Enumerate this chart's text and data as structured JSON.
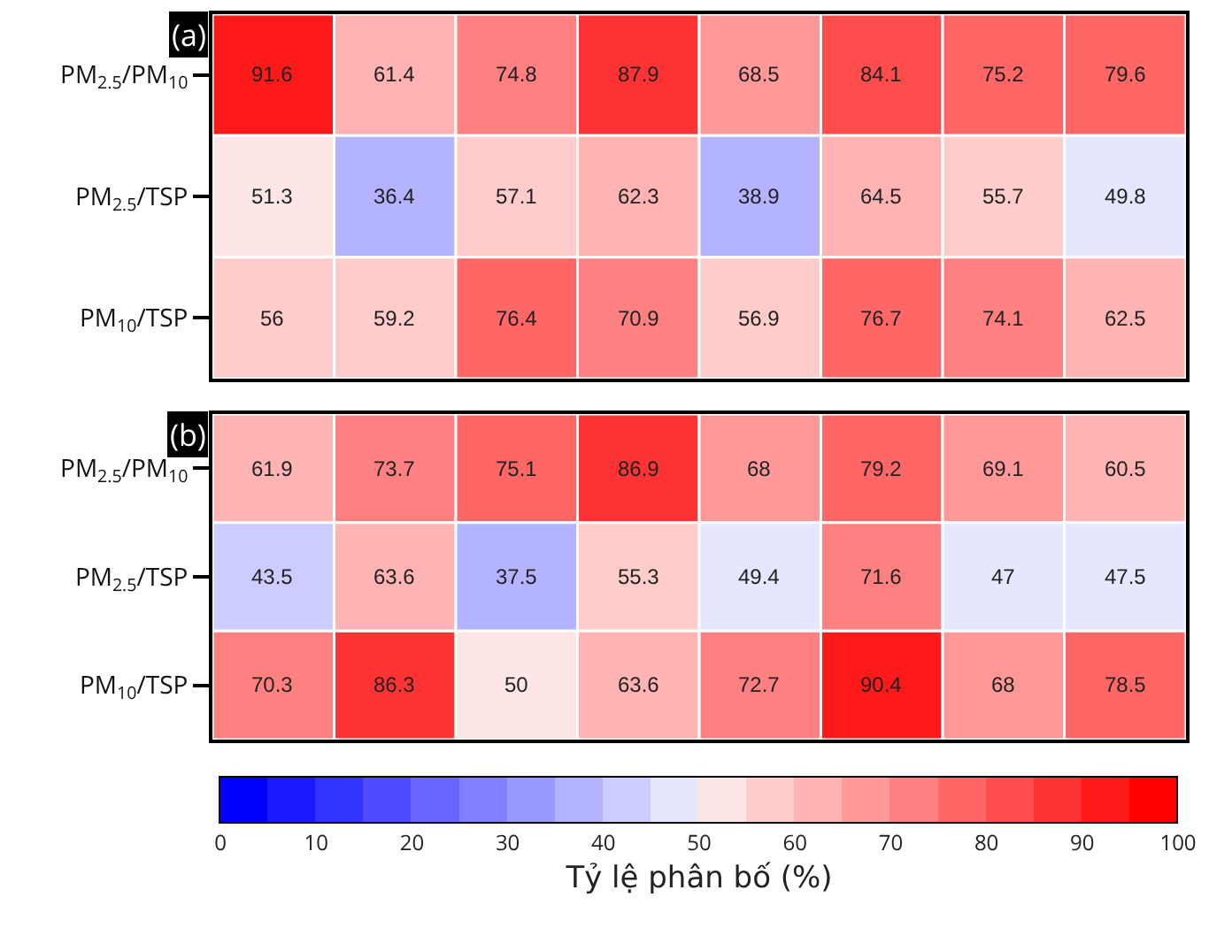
{
  "chart_data": [
    {
      "type": "heatmap",
      "title": "(a)",
      "categories": [
        null,
        null,
        null,
        null,
        null,
        null,
        null,
        null
      ],
      "y_categories": [
        "PM$_{2.5}$/PM$_{10}$",
        "PM$_{2.5}$/TSP",
        "PM$_{10}$/TSP"
      ],
      "cells": [
        [
          91.6,
          61.4,
          74.8,
          87.9,
          68.5,
          84.1,
          75.2,
          79.6
        ],
        [
          51.3,
          36.4,
          57.1,
          62.3,
          38.9,
          64.5,
          55.7,
          49.8
        ],
        [
          56,
          59.2,
          76.4,
          70.9,
          56.9,
          76.7,
          74.1,
          62.5
        ]
      ],
      "data_labels": true
    },
    {
      "type": "heatmap",
      "title": "(b)",
      "categories": [
        null,
        null,
        null,
        null,
        null,
        null,
        null,
        null
      ],
      "y_categories": [
        "PM$_{2.5}$/PM$_{10}$",
        "PM$_{2.5}$/TSP",
        "PM$_{10}$/TSP"
      ],
      "cells": [
        [
          61.9,
          73.7,
          75.1,
          86.9,
          68,
          79.2,
          69.1,
          60.5
        ],
        [
          43.5,
          63.6,
          37.5,
          55.3,
          49.4,
          71.6,
          47,
          47.5
        ],
        [
          70.3,
          86.3,
          50,
          63.6,
          72.7,
          90.4,
          68,
          78.5
        ]
      ],
      "clim": [
        0,
        100
      ],
      "cticks": [
        0,
        10,
        20,
        30,
        40,
        50,
        60,
        70,
        80,
        90,
        100
      ],
      "clabel": "Tỷ lệ phân bố (%)",
      "data_labels": true
    }
  ]
}
